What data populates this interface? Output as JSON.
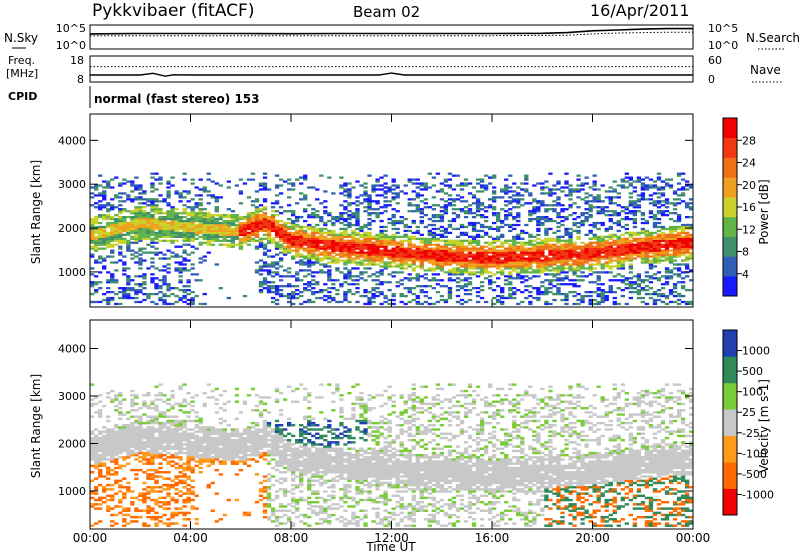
{
  "header": {
    "station": "Pykkvibaer (fitACF)",
    "beam": "Beam 02",
    "date": "16/Apr/2011"
  },
  "colors": {
    "frame": "#000000",
    "power_palette": [
      "#1a1aff",
      "#2f5fb4",
      "#3f8f6a",
      "#62b34a",
      "#c9d22a",
      "#f0a020",
      "#f07018",
      "#f23812",
      "#f00000"
    ],
    "velocity_palette": [
      "#f00000",
      "#ff6a00",
      "#ff9a1a",
      "#c8c8c8",
      "#7acc3a",
      "#2f8a5a",
      "#2040b0"
    ]
  },
  "chart_data": [
    {
      "type": "line",
      "name": "noise-panel",
      "left_label": "N.Sky",
      "right_label": "N.Search",
      "left_ticks": [
        "10^5",
        "10^0"
      ],
      "right_ticks": [
        "10^5",
        "10^0"
      ],
      "x_range_hours": [
        0,
        24
      ],
      "series": [
        {
          "style": "solid",
          "x": [
            0,
            2,
            4,
            6,
            8,
            10,
            12,
            14,
            16,
            18,
            19,
            20,
            21,
            22,
            23,
            24
          ],
          "y": [
            3.2,
            3.3,
            3.3,
            3.3,
            3.25,
            3.3,
            3.3,
            3.3,
            3.3,
            3.35,
            3.5,
            3.9,
            4.1,
            4.3,
            4.4,
            4.4
          ]
        },
        {
          "style": "dotted",
          "x": [
            0,
            4,
            8,
            12,
            16,
            19,
            20,
            21,
            22,
            23,
            24
          ],
          "y": [
            2.8,
            2.8,
            2.8,
            2.8,
            2.8,
            2.9,
            3.2,
            3.4,
            3.5,
            3.6,
            3.6
          ]
        }
      ]
    },
    {
      "type": "line",
      "name": "frequency-panel",
      "left_label": "Freq.",
      "left_unit": "[MHz]",
      "right_label": "Nave",
      "left_ticks": [
        "18",
        "8"
      ],
      "right_ticks": [
        "60",
        "0"
      ],
      "x_range_hours": [
        0,
        24
      ],
      "series": [
        {
          "style": "solid",
          "x": [
            0,
            2,
            2.5,
            3,
            3.3,
            4,
            8,
            11.5,
            12,
            12.5,
            16,
            20,
            24
          ],
          "y": [
            10.5,
            10.5,
            11.2,
            10.0,
            10.6,
            10.5,
            10.5,
            10.5,
            11.3,
            10.5,
            10.5,
            10.5,
            10.5
          ]
        },
        {
          "style": "dotted",
          "x": [
            0,
            24
          ],
          "y": [
            14,
            14
          ]
        }
      ]
    },
    {
      "type": "heatmap",
      "name": "power-panel",
      "ylabel": "Slant Range [km]",
      "xlabel": "Time UT",
      "ylim": [
        200,
        4600
      ],
      "yticks": [
        1000,
        2000,
        3000,
        4000
      ],
      "x_range_hours": [
        0,
        24
      ],
      "xtick_labels": [
        "00:00",
        "04:00",
        "08:00",
        "12:00",
        "16:00",
        "20:00",
        "00:00"
      ],
      "colorbar": {
        "label": "Power [dB]",
        "ticks": [
          "28",
          "24",
          "20",
          "16",
          "12",
          "8",
          "4"
        ],
        "range": [
          0,
          32
        ]
      },
      "band_center_km": {
        "x": [
          0,
          2,
          4,
          6,
          7,
          8,
          10,
          12,
          14,
          16,
          18,
          20,
          22,
          24
        ],
        "y": [
          1800,
          2100,
          2000,
          1900,
          2100,
          1700,
          1550,
          1450,
          1350,
          1300,
          1350,
          1400,
          1550,
          1650
        ]
      }
    },
    {
      "type": "heatmap",
      "name": "velocity-panel",
      "ylabel": "Slant Range [km]",
      "xlabel": "Time UT",
      "ylim": [
        200,
        4600
      ],
      "yticks": [
        1000,
        2000,
        3000,
        4000
      ],
      "x_range_hours": [
        0,
        24
      ],
      "xtick_labels": [
        "00:00",
        "04:00",
        "08:00",
        "12:00",
        "16:00",
        "20:00",
        "00:00"
      ],
      "colorbar": {
        "label": "Velocity [m s-1]",
        "ticks": [
          "1000",
          "500",
          "100",
          "25",
          "-25",
          "-100",
          "-500",
          "-1000"
        ],
        "range": [
          -1200,
          1200
        ]
      }
    }
  ],
  "cpid": {
    "label": "CPID",
    "mode": "normal (fast stereo) 153"
  },
  "x_axis_title": "Time UT"
}
